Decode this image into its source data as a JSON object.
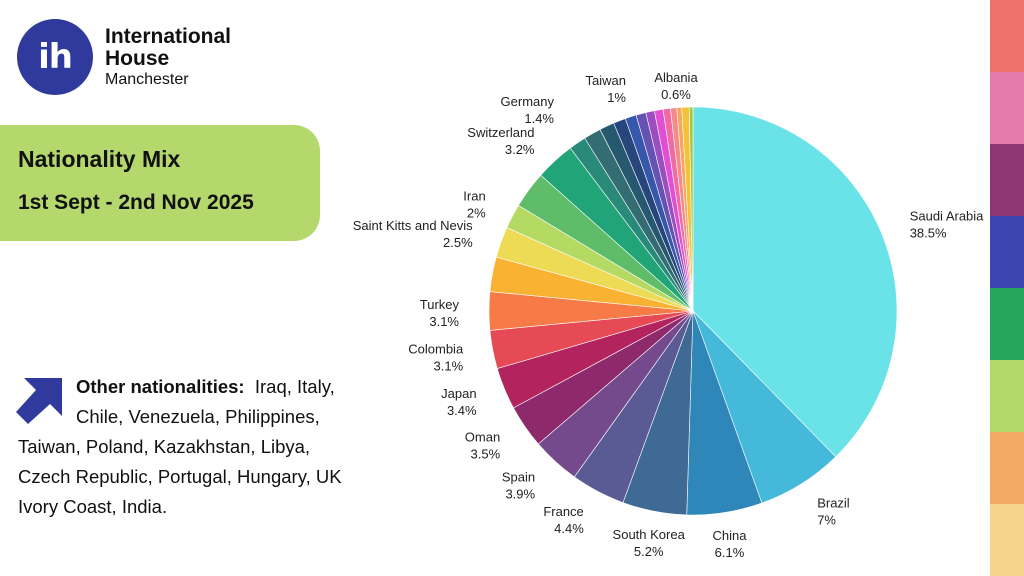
{
  "logo": {
    "mark": "ih",
    "line1": "International",
    "line2": "House",
    "line3": "Manchester"
  },
  "title": {
    "line1": "Nationality Mix",
    "line2": "1st  Sept - 2nd Nov 2025"
  },
  "other": {
    "label": "Other nationalities:",
    "text_line1": "Iraq, Italy,",
    "text_line2": "Chile, Venezuela, Philippines,",
    "text_line3": "Taiwan, Poland, Kazakhstan, Libya,",
    "text_line4": "Czech Republic, Portugal, Hungary, UK",
    "text_line5": "Ivory Coast, India."
  },
  "side_stripes": [
    "#f0736b",
    "#e57bab",
    "#8e3575",
    "#3b44b0",
    "#25a65e",
    "#b5d86c",
    "#f2a964",
    "#f6d58a"
  ],
  "chart_data": {
    "type": "pie",
    "title": "Nationality Mix",
    "start": "12 o'clock, clockwise",
    "slices": [
      {
        "label": "Saudi Arabia",
        "display": "38.5%",
        "value": 38.5,
        "color": "#6ae3e8",
        "show_label": true
      },
      {
        "label": "Brazil",
        "display": "7%",
        "value": 7.0,
        "color": "#44b9d9",
        "show_label": true
      },
      {
        "label": "China",
        "display": "6.1%",
        "value": 6.1,
        "color": "#2f86b8",
        "show_label": true
      },
      {
        "label": "South Korea",
        "display": "5.2%",
        "value": 5.2,
        "color": "#3e6a95",
        "show_label": true
      },
      {
        "label": "France",
        "display": "4.4%",
        "value": 4.4,
        "color": "#5a5a94",
        "show_label": true
      },
      {
        "label": "Spain",
        "display": "3.9%",
        "value": 3.9,
        "color": "#754a8d",
        "show_label": true
      },
      {
        "label": "Oman",
        "display": "3.5%",
        "value": 3.5,
        "color": "#8e2a6c",
        "show_label": true
      },
      {
        "label": "Japan",
        "display": "3.4%",
        "value": 3.4,
        "color": "#b3245e",
        "show_label": true
      },
      {
        "label": "Colombia",
        "display": "3.1%",
        "value": 3.1,
        "color": "#e64a55",
        "show_label": true
      },
      {
        "label": "Turkey",
        "display": "3.1%",
        "value": 3.1,
        "color": "#f77b46",
        "show_label": true
      },
      {
        "label": "",
        "display": "",
        "value": 2.8,
        "color": "#f9b232",
        "show_label": false
      },
      {
        "label": "Saint Kitts and Nevis",
        "display": "2.5%",
        "value": 2.5,
        "color": "#eedb55",
        "show_label": true
      },
      {
        "label": "Iran",
        "display": "2%",
        "value": 2.0,
        "color": "#b4da63",
        "show_label": true
      },
      {
        "label": "",
        "display": "",
        "value": 3.0,
        "color": "#5fbd6a",
        "show_label": false
      },
      {
        "label": "Switzerland",
        "display": "3.2%",
        "value": 3.2,
        "color": "#21a477",
        "show_label": true
      },
      {
        "label": "",
        "display": "",
        "value": 1.4,
        "color": "#2a8a79",
        "show_label": false
      },
      {
        "label": "Germany",
        "display": "1.4%",
        "value": 1.4,
        "color": "#336c72",
        "show_label": true
      },
      {
        "label": "",
        "display": "",
        "value": 1.2,
        "color": "#26586f",
        "show_label": false
      },
      {
        "label": "Taiwan",
        "display": "1%",
        "value": 1.0,
        "color": "#27477c",
        "show_label": true
      },
      {
        "label": "",
        "display": "",
        "value": 0.9,
        "color": "#3757ab",
        "show_label": false
      },
      {
        "label": "",
        "display": "",
        "value": 0.8,
        "color": "#6552b3",
        "show_label": false
      },
      {
        "label": "",
        "display": "",
        "value": 0.7,
        "color": "#9b4fbf",
        "show_label": false
      },
      {
        "label": "",
        "display": "",
        "value": 0.7,
        "color": "#e24fd5",
        "show_label": false
      },
      {
        "label": "",
        "display": "",
        "value": 0.6,
        "color": "#f06ca0",
        "show_label": false
      },
      {
        "label": "",
        "display": "",
        "value": 0.5,
        "color": "#f58a8a",
        "show_label": false
      },
      {
        "label": "",
        "display": "",
        "value": 0.4,
        "color": "#f9a55e",
        "show_label": false
      },
      {
        "label": "Albania",
        "display": "0.6%",
        "value": 0.6,
        "color": "#f2c23a",
        "show_label": true
      },
      {
        "label": "",
        "display": "",
        "value": 0.3,
        "color": "#a4c83a",
        "show_label": false
      }
    ]
  }
}
